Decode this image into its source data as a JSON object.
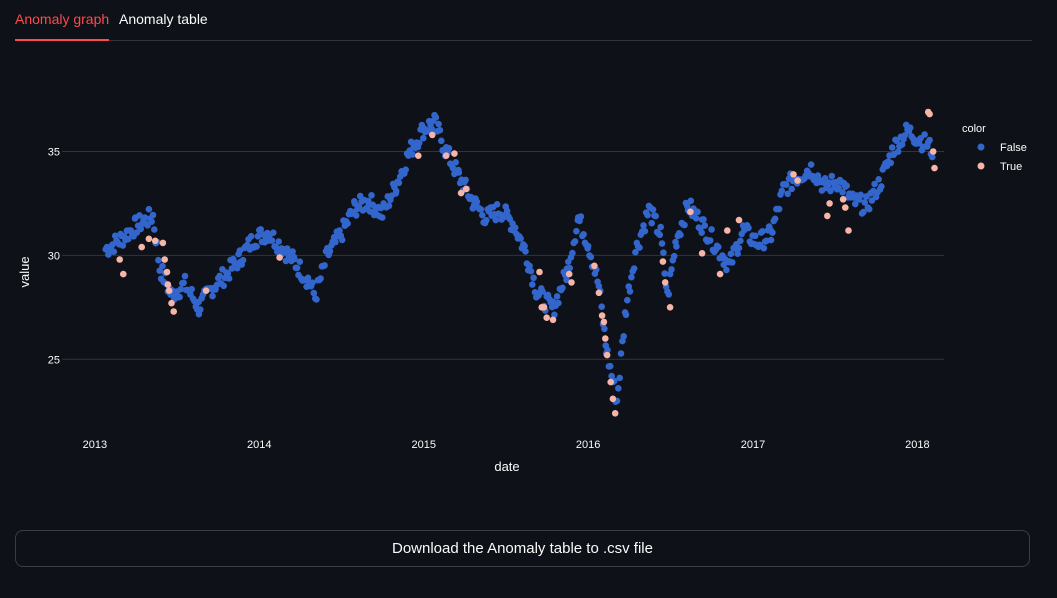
{
  "tabs": [
    {
      "label": "Anomaly graph",
      "active": true
    },
    {
      "label": "Anomaly table",
      "active": false
    }
  ],
  "download_label": "Download the Anomaly table to .csv file",
  "chart_data": {
    "type": "scatter",
    "xlabel": "date",
    "ylabel": "value",
    "xlim": [
      "2012-10-20",
      "2018-03-01"
    ],
    "ylim": [
      21.5,
      39.5
    ],
    "x_ticks": [
      "2013",
      "2014",
      "2015",
      "2016",
      "2017",
      "2018"
    ],
    "y_ticks": [
      25,
      30,
      35
    ],
    "grid": true,
    "legend": {
      "title": "color",
      "position": "right"
    },
    "series": [
      {
        "name": "False",
        "color": "#3366cc",
        "trend": [
          [
            "2013-01-25",
            30.3
          ],
          [
            "2013-03-01",
            30.8
          ],
          [
            "2013-04-01",
            31.4
          ],
          [
            "2013-05-10",
            31.9
          ],
          [
            "2013-05-25",
            29.4
          ],
          [
            "2013-06-20",
            28.1
          ],
          [
            "2013-07-20",
            28.6
          ],
          [
            "2013-08-20",
            27.5
          ],
          [
            "2013-09-20",
            28.5
          ],
          [
            "2013-10-20",
            29.1
          ],
          [
            "2013-11-20",
            29.9
          ],
          [
            "2013-12-20",
            30.8
          ],
          [
            "2014-01-20",
            31.1
          ],
          [
            "2014-02-20",
            30.4
          ],
          [
            "2014-03-20",
            29.7
          ],
          [
            "2014-04-20",
            28.8
          ],
          [
            "2014-05-05",
            28.0
          ],
          [
            "2014-06-01",
            30.0
          ],
          [
            "2014-07-01",
            31.0
          ],
          [
            "2014-08-01",
            32.3
          ],
          [
            "2014-09-01",
            32.6
          ],
          [
            "2014-10-01",
            32.0
          ],
          [
            "2014-11-01",
            33.4
          ],
          [
            "2014-12-01",
            35.0
          ],
          [
            "2015-01-01",
            36.1
          ],
          [
            "2015-01-25",
            36.4
          ],
          [
            "2015-02-20",
            35.0
          ],
          [
            "2015-03-20",
            33.8
          ],
          [
            "2015-04-20",
            32.6
          ],
          [
            "2015-05-20",
            31.8
          ],
          [
            "2015-06-20",
            32.2
          ],
          [
            "2015-07-20",
            31.5
          ],
          [
            "2015-08-15",
            30.2
          ],
          [
            "2015-09-10",
            28.2
          ],
          [
            "2015-10-15",
            27.4
          ],
          [
            "2015-11-15",
            29.2
          ],
          [
            "2015-12-10",
            31.8
          ],
          [
            "2016-01-01",
            30.6
          ],
          [
            "2016-01-25",
            28.5
          ],
          [
            "2016-02-10",
            25.5
          ],
          [
            "2016-03-05",
            23.0
          ],
          [
            "2016-03-25",
            27.5
          ],
          [
            "2016-04-15",
            30.2
          ],
          [
            "2016-05-15",
            32.2
          ],
          [
            "2016-06-10",
            31.0
          ],
          [
            "2016-06-25",
            28.0
          ],
          [
            "2016-07-15",
            30.8
          ],
          [
            "2016-08-10",
            32.4
          ],
          [
            "2016-09-10",
            31.5
          ],
          [
            "2016-10-10",
            30.5
          ],
          [
            "2016-11-10",
            29.5
          ],
          [
            "2016-12-10",
            31.2
          ],
          [
            "2017-01-10",
            30.6
          ],
          [
            "2017-02-10",
            31.0
          ],
          [
            "2017-03-10",
            33.2
          ],
          [
            "2017-04-10",
            33.8
          ],
          [
            "2017-05-10",
            34.2
          ],
          [
            "2017-06-10",
            33.3
          ],
          [
            "2017-07-10",
            33.6
          ],
          [
            "2017-08-10",
            32.6
          ],
          [
            "2017-09-10",
            32.4
          ],
          [
            "2017-10-10",
            33.5
          ],
          [
            "2017-11-10",
            35.2
          ],
          [
            "2017-12-10",
            36.0
          ],
          [
            "2018-01-05",
            35.6
          ],
          [
            "2018-01-25",
            35.3
          ],
          [
            "2018-02-05",
            35.0
          ]
        ]
      },
      {
        "name": "True",
        "color": "#f7b4a8",
        "points": [
          [
            "2013-02-25",
            29.8
          ],
          [
            "2013-03-05",
            29.1
          ],
          [
            "2013-04-15",
            30.4
          ],
          [
            "2013-05-01",
            30.8
          ],
          [
            "2013-05-15",
            30.7
          ],
          [
            "2013-06-01",
            30.6
          ],
          [
            "2013-06-05",
            29.8
          ],
          [
            "2013-06-10",
            29.2
          ],
          [
            "2013-06-12",
            28.6
          ],
          [
            "2013-06-15",
            28.3
          ],
          [
            "2013-06-20",
            27.7
          ],
          [
            "2013-06-25",
            27.3
          ],
          [
            "2013-09-05",
            28.3
          ],
          [
            "2014-02-15",
            29.9
          ],
          [
            "2014-12-20",
            34.8
          ],
          [
            "2015-01-20",
            35.8
          ],
          [
            "2015-02-20",
            34.8
          ],
          [
            "2015-03-10",
            34.9
          ],
          [
            "2015-03-25",
            33.0
          ],
          [
            "2015-04-05",
            33.2
          ],
          [
            "2015-09-15",
            29.2
          ],
          [
            "2015-09-20",
            27.5
          ],
          [
            "2015-09-25",
            27.5
          ],
          [
            "2015-10-01",
            27.0
          ],
          [
            "2015-10-15",
            26.9
          ],
          [
            "2015-11-20",
            29.1
          ],
          [
            "2015-11-25",
            28.7
          ],
          [
            "2016-01-15",
            29.5
          ],
          [
            "2016-01-25",
            28.2
          ],
          [
            "2016-02-01",
            27.1
          ],
          [
            "2016-02-05",
            26.8
          ],
          [
            "2016-02-08",
            26.0
          ],
          [
            "2016-02-12",
            25.2
          ],
          [
            "2016-02-20",
            23.9
          ],
          [
            "2016-02-25",
            23.1
          ],
          [
            "2016-03-01",
            22.4
          ],
          [
            "2016-06-15",
            29.7
          ],
          [
            "2016-06-20",
            28.7
          ],
          [
            "2016-07-01",
            27.5
          ],
          [
            "2016-08-15",
            32.1
          ],
          [
            "2016-09-10",
            30.1
          ],
          [
            "2016-10-20",
            29.1
          ],
          [
            "2016-11-05",
            31.2
          ],
          [
            "2016-12-01",
            31.7
          ],
          [
            "2017-04-01",
            33.9
          ],
          [
            "2017-04-10",
            33.6
          ],
          [
            "2017-06-15",
            31.9
          ],
          [
            "2017-06-20",
            32.5
          ],
          [
            "2017-07-20",
            32.7
          ],
          [
            "2017-07-25",
            32.3
          ],
          [
            "2017-08-01",
            31.2
          ],
          [
            "2018-01-25",
            36.9
          ],
          [
            "2018-01-28",
            36.8
          ],
          [
            "2018-02-05",
            35.0
          ],
          [
            "2018-02-08",
            34.2
          ]
        ]
      }
    ]
  }
}
